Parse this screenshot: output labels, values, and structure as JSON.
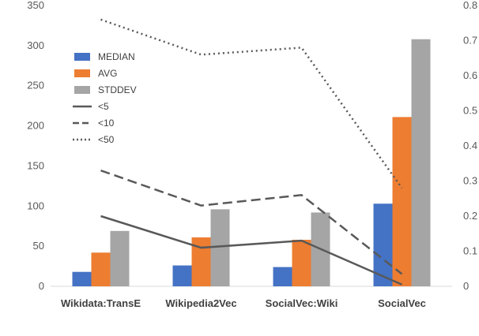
{
  "chart_data": {
    "type": "bar",
    "categories": [
      "Wikidata:TransE",
      "Wikipedia2Vec",
      "SocialVec:Wiki",
      "SocialVec"
    ],
    "series": [
      {
        "name": "MEDIAN",
        "type": "bar",
        "axis": "left",
        "color": "#4472c4",
        "values": [
          18,
          26,
          24,
          103
        ]
      },
      {
        "name": "AVG",
        "type": "bar",
        "axis": "left",
        "color": "#ed7d31",
        "values": [
          42,
          61,
          58,
          211
        ]
      },
      {
        "name": "STDDEV",
        "type": "bar",
        "axis": "left",
        "color": "#a5a5a5",
        "values": [
          69,
          96,
          92,
          308
        ]
      },
      {
        "name": "<5",
        "type": "line",
        "style": "solid",
        "axis": "right",
        "color": "#595959",
        "values": [
          0.2,
          0.11,
          0.13,
          0.005
        ]
      },
      {
        "name": "<10",
        "type": "line",
        "style": "dashed",
        "axis": "right",
        "color": "#595959",
        "values": [
          0.33,
          0.23,
          0.26,
          0.035
        ]
      },
      {
        "name": "<50",
        "type": "line",
        "style": "dotted",
        "axis": "right",
        "color": "#595959",
        "values": [
          0.76,
          0.66,
          0.68,
          0.28
        ]
      }
    ],
    "y_left": {
      "min": 0,
      "max": 350,
      "ticks": [
        "0",
        "50",
        "100",
        "150",
        "200",
        "250",
        "300",
        "350"
      ]
    },
    "y_right": {
      "min": 0,
      "max": 0.8,
      "ticks": [
        "0",
        "0.1",
        "0.2",
        "0.3",
        "0.4",
        "0.5",
        "0.6",
        "0.7",
        "0.8"
      ]
    },
    "grid": false,
    "legend_position": "top-left"
  }
}
